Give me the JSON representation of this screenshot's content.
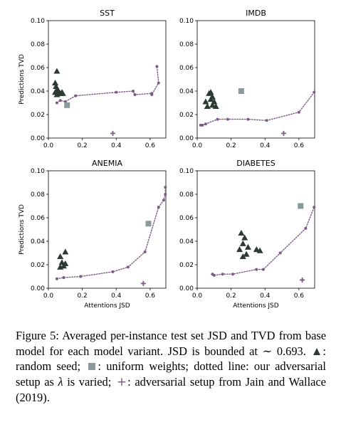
{
  "chart_data": [
    {
      "type": "scatter",
      "title": "SST",
      "xlabel": "",
      "ylabel": "Predictions TVD",
      "xlim": [
        0.0,
        0.693
      ],
      "ylim": [
        0.0,
        0.1
      ],
      "xticks": [
        "0.0",
        "0.2",
        "0.4",
        "0.6"
      ],
      "yticks": [
        "0.00",
        "0.02",
        "0.04",
        "0.06",
        "0.08",
        "0.10"
      ],
      "random_seed": [
        [
          0.05,
          0.057
        ],
        [
          0.04,
          0.047
        ],
        [
          0.045,
          0.044
        ],
        [
          0.05,
          0.041
        ],
        [
          0.06,
          0.04
        ],
        [
          0.08,
          0.039
        ],
        [
          0.04,
          0.039
        ],
        [
          0.07,
          0.038
        ],
        [
          0.05,
          0.037
        ],
        [
          0.085,
          0.038
        ]
      ],
      "uniform_weights": [
        [
          0.11,
          0.028
        ]
      ],
      "adversarial_lambda": [
        [
          0.05,
          0.03
        ],
        [
          0.07,
          0.032
        ],
        [
          0.1,
          0.031
        ],
        [
          0.16,
          0.036
        ],
        [
          0.4,
          0.039
        ],
        [
          0.5,
          0.04
        ],
        [
          0.51,
          0.037
        ],
        [
          0.61,
          0.038
        ],
        [
          0.61,
          0.037
        ],
        [
          0.65,
          0.047
        ],
        [
          0.64,
          0.061
        ]
      ],
      "jain_wallace": [
        [
          0.38,
          0.004
        ]
      ]
    },
    {
      "type": "scatter",
      "title": "IMDB",
      "xlabel": "",
      "ylabel": "",
      "xlim": [
        0.0,
        0.693
      ],
      "ylim": [
        0.0,
        0.1
      ],
      "xticks": [
        "0.0",
        "0.2",
        "0.4",
        "0.6"
      ],
      "yticks": [
        "0.00",
        "0.02",
        "0.04",
        "0.06",
        "0.08",
        "0.10"
      ],
      "random_seed": [
        [
          0.05,
          0.031
        ],
        [
          0.07,
          0.038
        ],
        [
          0.08,
          0.039
        ],
        [
          0.09,
          0.035
        ],
        [
          0.06,
          0.027
        ],
        [
          0.11,
          0.027
        ],
        [
          0.08,
          0.033
        ],
        [
          0.09,
          0.028
        ],
        [
          0.1,
          0.031
        ]
      ],
      "uniform_weights": [
        [
          0.26,
          0.04
        ]
      ],
      "adversarial_lambda": [
        [
          0.02,
          0.011
        ],
        [
          0.03,
          0.011
        ],
        [
          0.05,
          0.012
        ],
        [
          0.12,
          0.016
        ],
        [
          0.18,
          0.016
        ],
        [
          0.3,
          0.016
        ],
        [
          0.41,
          0.015
        ],
        [
          0.6,
          0.022
        ],
        [
          0.69,
          0.039
        ]
      ],
      "jain_wallace": [
        [
          0.51,
          0.004
        ]
      ]
    },
    {
      "type": "scatter",
      "title": "ANEMIA",
      "xlabel": "Attentions JSD",
      "ylabel": "Predictions TVD",
      "xlim": [
        0.0,
        0.693
      ],
      "ylim": [
        0.0,
        0.1
      ],
      "xticks": [
        "0.0",
        "0.2",
        "0.4",
        "0.6"
      ],
      "yticks": [
        "0.00",
        "0.02",
        "0.04",
        "0.06",
        "0.08",
        "0.10"
      ],
      "random_seed": [
        [
          0.07,
          0.027
        ],
        [
          0.1,
          0.031
        ],
        [
          0.08,
          0.022
        ],
        [
          0.09,
          0.019
        ],
        [
          0.07,
          0.018
        ],
        [
          0.1,
          0.021
        ]
      ],
      "uniform_weights": [
        [
          0.59,
          0.055
        ]
      ],
      "adversarial_lambda": [
        [
          0.05,
          0.008
        ],
        [
          0.09,
          0.009
        ],
        [
          0.19,
          0.01
        ],
        [
          0.38,
          0.014
        ],
        [
          0.47,
          0.018
        ],
        [
          0.57,
          0.031
        ],
        [
          0.65,
          0.069
        ],
        [
          0.68,
          0.075
        ],
        [
          0.69,
          0.08
        ],
        [
          0.69,
          0.086
        ]
      ],
      "jain_wallace": [
        [
          0.56,
          0.004
        ]
      ]
    },
    {
      "type": "scatter",
      "title": "DIABETES",
      "xlabel": "Attentions JSD",
      "ylabel": "",
      "xlim": [
        0.0,
        0.693
      ],
      "ylim": [
        0.0,
        0.1
      ],
      "xticks": [
        "0.0",
        "0.2",
        "0.4",
        "0.6"
      ],
      "yticks": [
        "0.00",
        "0.02",
        "0.04",
        "0.06",
        "0.08",
        "0.10"
      ],
      "random_seed": [
        [
          0.26,
          0.047
        ],
        [
          0.28,
          0.043
        ],
        [
          0.27,
          0.038
        ],
        [
          0.25,
          0.033
        ],
        [
          0.3,
          0.035
        ],
        [
          0.35,
          0.033
        ],
        [
          0.37,
          0.032
        ],
        [
          0.27,
          0.027
        ],
        [
          0.29,
          0.029
        ]
      ],
      "uniform_weights": [
        [
          0.61,
          0.07
        ]
      ],
      "adversarial_lambda": [
        [
          0.09,
          0.012
        ],
        [
          0.1,
          0.011
        ],
        [
          0.15,
          0.012
        ],
        [
          0.21,
          0.012
        ],
        [
          0.35,
          0.016
        ],
        [
          0.39,
          0.016
        ],
        [
          0.49,
          0.03
        ],
        [
          0.64,
          0.051
        ],
        [
          0.69,
          0.069
        ]
      ],
      "jain_wallace": [
        [
          0.62,
          0.007
        ]
      ]
    }
  ],
  "caption": {
    "figure_label": "Figure 5:",
    "part1": "Averaged per-instance test set JSD and TVD from base model for each model variant. JSD is bounded at ∼ 0.693.",
    "seed_label": ": random seed;",
    "uniform_label": ": uniform weights;",
    "dotted_label": "dotted line: our adversarial setup as",
    "lambda": "λ",
    "varied_label": "is varied;",
    "jain_label": ": adversarial setup from Jain and Wallace (2019)."
  },
  "colors": {
    "random_seed": "#2d3a32",
    "uniform_weights": "#8a9a9c",
    "adversarial_lambda": "#7b5a85",
    "jain_wallace": "#7b5a85",
    "frame": "#000000"
  },
  "icons": {
    "random_seed": "triangle-icon",
    "uniform_weights": "square-icon",
    "adversarial_lambda": "dotted-line",
    "jain_wallace": "plus-icon"
  }
}
